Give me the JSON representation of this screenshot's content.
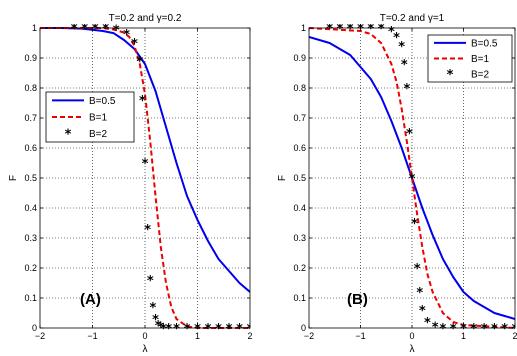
{
  "chart_data": [
    {
      "type": "line",
      "title": "T=0.2 and γ=0.2",
      "xlabel": "λ",
      "ylabel": "F",
      "panel_label": "(A)",
      "xlim": [
        -2,
        2
      ],
      "ylim": [
        0,
        1
      ],
      "xticks": [
        "−2",
        "−1",
        "0",
        "1",
        "2"
      ],
      "yticks": [
        "0",
        "0.1",
        "0.2",
        "0.3",
        "0.4",
        "0.5",
        "0.6",
        "0.7",
        "0.8",
        "0.9",
        "1"
      ],
      "grid": true,
      "legend_position": "middle-left",
      "series": [
        {
          "name": "B=0.5",
          "style": "solid",
          "color": "#0000ee",
          "x": [
            -2,
            -1.6,
            -1.2,
            -0.8,
            -0.6,
            -0.4,
            -0.2,
            0,
            0.2,
            0.4,
            0.6,
            0.8,
            1.0,
            1.2,
            1.4,
            1.6,
            1.8,
            2.0
          ],
          "y": [
            1.0,
            1.0,
            0.998,
            0.99,
            0.983,
            0.96,
            0.93,
            0.88,
            0.79,
            0.67,
            0.55,
            0.44,
            0.36,
            0.29,
            0.23,
            0.19,
            0.15,
            0.12
          ]
        },
        {
          "name": "B=1",
          "style": "dashed",
          "color": "#ee0000",
          "x": [
            -2,
            -0.8,
            -0.6,
            -0.4,
            -0.3,
            -0.2,
            -0.1,
            0,
            0.1,
            0.2,
            0.3,
            0.4,
            0.5,
            0.6,
            0.8,
            1.0,
            2.0
          ],
          "y": [
            1.0,
            1.0,
            0.995,
            0.985,
            0.97,
            0.94,
            0.88,
            0.78,
            0.62,
            0.44,
            0.27,
            0.15,
            0.07,
            0.03,
            0.005,
            0.0,
            0.0
          ]
        },
        {
          "name": "B=2",
          "style": "marker",
          "color": "#000000",
          "x": [
            -1.35,
            -1.15,
            -0.95,
            -0.75,
            -0.55,
            -0.35,
            -0.2,
            -0.1,
            -0.05,
            0.0,
            0.05,
            0.1,
            0.15,
            0.2,
            0.25,
            0.3,
            0.35,
            0.45,
            0.6,
            0.8,
            1.0,
            1.2,
            1.4,
            1.6,
            1.8,
            2.0
          ],
          "y": [
            1.0,
            1.0,
            1.0,
            1.0,
            0.995,
            0.98,
            0.95,
            0.89,
            0.76,
            0.55,
            0.33,
            0.16,
            0.07,
            0.03,
            0.01,
            0.005,
            0.0,
            0.0,
            0.0,
            0.0,
            0.0,
            0.0,
            0.0,
            0.0,
            0.0,
            0.0
          ]
        }
      ]
    },
    {
      "type": "line",
      "title": "T=0.2 and γ=1",
      "xlabel": "λ",
      "ylabel": "F",
      "panel_label": "(B)",
      "xlim": [
        -2,
        2
      ],
      "ylim": [
        0,
        1
      ],
      "xticks": [
        "−2",
        "−1",
        "0",
        "1",
        "2"
      ],
      "yticks": [
        "0",
        "0.1",
        "0.2",
        "0.3",
        "0.4",
        "0.5",
        "0.6",
        "0.7",
        "0.8",
        "0.9",
        "1"
      ],
      "grid": true,
      "legend_position": "top-right",
      "series": [
        {
          "name": "B=0.5",
          "style": "solid",
          "color": "#0000ee",
          "x": [
            -2,
            -1.6,
            -1.2,
            -0.8,
            -0.6,
            -0.4,
            -0.2,
            0,
            0.2,
            0.4,
            0.6,
            0.8,
            1.0,
            1.2,
            1.4,
            1.6,
            1.8,
            2.0
          ],
          "y": [
            0.97,
            0.95,
            0.91,
            0.83,
            0.77,
            0.69,
            0.6,
            0.5,
            0.4,
            0.31,
            0.23,
            0.17,
            0.12,
            0.09,
            0.07,
            0.05,
            0.04,
            0.03
          ]
        },
        {
          "name": "B=1",
          "style": "dashed",
          "color": "#ee0000",
          "x": [
            -2,
            -1.0,
            -0.8,
            -0.6,
            -0.4,
            -0.3,
            -0.2,
            -0.1,
            0,
            0.1,
            0.2,
            0.3,
            0.4,
            0.6,
            0.8,
            1.0,
            2.0
          ],
          "y": [
            1.0,
            0.99,
            0.98,
            0.95,
            0.88,
            0.82,
            0.73,
            0.62,
            0.5,
            0.38,
            0.27,
            0.18,
            0.12,
            0.05,
            0.02,
            0.01,
            0.0
          ]
        },
        {
          "name": "B=2",
          "style": "marker",
          "color": "#000000",
          "x": [
            -1.6,
            -1.4,
            -1.2,
            -1.0,
            -0.8,
            -0.6,
            -0.4,
            -0.3,
            -0.2,
            -0.15,
            -0.1,
            -0.05,
            0.0,
            0.05,
            0.1,
            0.15,
            0.2,
            0.3,
            0.45,
            0.6,
            0.8,
            1.0,
            1.2,
            1.4,
            1.6,
            1.8,
            2.0
          ],
          "y": [
            1.0,
            1.0,
            1.0,
            1.0,
            1.0,
            1.0,
            0.99,
            0.97,
            0.94,
            0.88,
            0.8,
            0.65,
            0.5,
            0.35,
            0.2,
            0.12,
            0.06,
            0.02,
            0.005,
            0.0,
            0.0,
            0.0,
            0.0,
            0.0,
            0.0,
            0.0,
            0.0
          ]
        }
      ]
    }
  ]
}
